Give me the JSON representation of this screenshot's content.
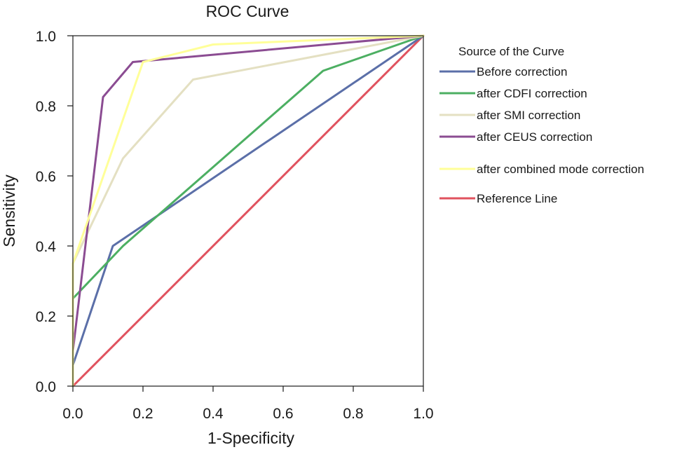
{
  "chart_data": {
    "type": "line",
    "title": "ROC Curve",
    "xlabel": "1-Specificity",
    "ylabel": "Sensitivity",
    "xlim": [
      0,
      1
    ],
    "ylim": [
      0,
      1
    ],
    "xticks": [
      "0.0",
      "0.2",
      "0.4",
      "0.6",
      "0.8",
      "1.0"
    ],
    "yticks": [
      "0.0",
      "0.2",
      "0.4",
      "0.6",
      "0.8",
      "1.0"
    ],
    "grid": false,
    "legend_position": "right",
    "legend_title": "Source of the Curve",
    "series": [
      {
        "name": "Before correction",
        "color": "#5b6fa8",
        "points": [
          [
            0,
            0
          ],
          [
            0,
            0.06
          ],
          [
            0.114,
            0.4
          ],
          [
            1,
            1
          ]
        ]
      },
      {
        "name": "after CDFI correction",
        "color": "#4caf62",
        "points": [
          [
            0,
            0
          ],
          [
            0,
            0.25
          ],
          [
            0.143,
            0.4
          ],
          [
            0.714,
            0.9
          ],
          [
            1,
            1
          ]
        ]
      },
      {
        "name": "after SMI correction",
        "color": "#e4e0c2",
        "points": [
          [
            0,
            0
          ],
          [
            0,
            0.35
          ],
          [
            0.143,
            0.65
          ],
          [
            0.343,
            0.875
          ],
          [
            1,
            1
          ]
        ]
      },
      {
        "name": "after CEUS correction",
        "color": "#8b4c92",
        "points": [
          [
            0,
            0
          ],
          [
            0,
            0.1
          ],
          [
            0.086,
            0.825
          ],
          [
            0.171,
            0.925
          ],
          [
            1,
            1
          ]
        ]
      },
      {
        "name": "after combined mode correction",
        "color": "#ffff99",
        "points": [
          [
            0,
            0
          ],
          [
            0,
            0.35
          ],
          [
            0.2,
            0.925
          ],
          [
            0.4,
            0.975
          ],
          [
            1,
            1
          ]
        ]
      },
      {
        "name": "Reference Line",
        "color": "#e0525e",
        "points": [
          [
            0,
            0
          ],
          [
            1,
            1
          ]
        ]
      }
    ]
  }
}
